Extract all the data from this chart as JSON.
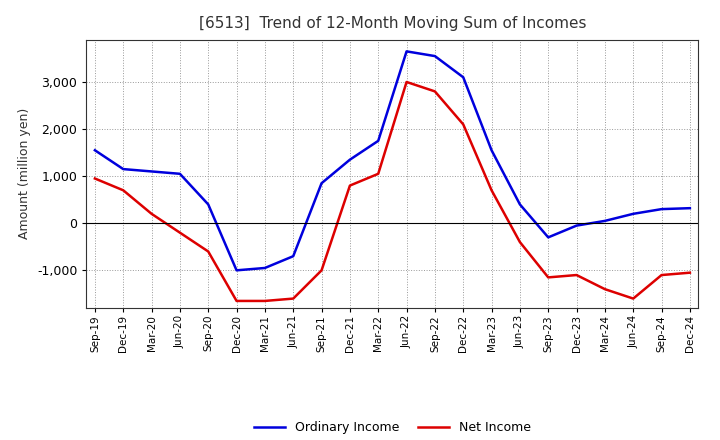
{
  "title": "[6513]  Trend of 12-Month Moving Sum of Incomes",
  "ylabel": "Amount (million yen)",
  "x_labels": [
    "Sep-19",
    "Dec-19",
    "Mar-20",
    "Jun-20",
    "Sep-20",
    "Dec-20",
    "Mar-21",
    "Jun-21",
    "Sep-21",
    "Dec-21",
    "Mar-22",
    "Jun-22",
    "Sep-22",
    "Dec-22",
    "Mar-23",
    "Jun-23",
    "Sep-23",
    "Dec-23",
    "Mar-24",
    "Jun-24",
    "Sep-24",
    "Dec-24"
  ],
  "ordinary_income": [
    1550,
    1150,
    1100,
    1050,
    400,
    -1000,
    -950,
    -700,
    850,
    1350,
    1750,
    3650,
    3550,
    3100,
    1550,
    400,
    -300,
    -50,
    50,
    200,
    300,
    320
  ],
  "net_income": [
    950,
    700,
    200,
    -200,
    -600,
    -1650,
    -1650,
    -1600,
    -1000,
    800,
    1050,
    3000,
    2800,
    2100,
    700,
    -400,
    -1150,
    -1100,
    -1400,
    -1600,
    -1100,
    -1050
  ],
  "ordinary_income_color": "#0000dd",
  "net_income_color": "#dd0000",
  "ylim_min": -1800,
  "ylim_max": 3900,
  "yticks": [
    -1000,
    0,
    1000,
    2000,
    3000
  ],
  "background_color": "#ffffff",
  "plot_bg_color": "#ffffff",
  "grid_color": "#999999",
  "linewidth": 1.8,
  "title_color": "#333333",
  "legend_ordinary": "Ordinary Income",
  "legend_net": "Net Income"
}
